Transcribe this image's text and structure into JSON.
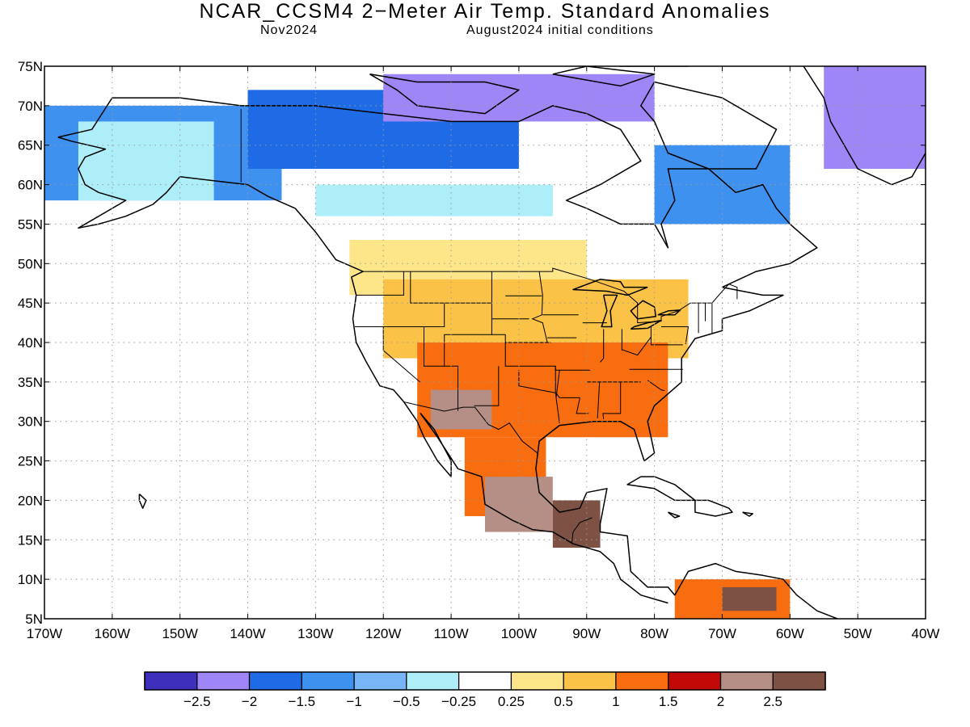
{
  "header": {
    "title": "NCAR_CCSM4 2−Meter Air Temp. Standard Anomalies",
    "valid_period": "Nov2024",
    "initial_conditions": "August2024 initial conditions"
  },
  "axes": {
    "lat_labels": [
      "75N",
      "70N",
      "65N",
      "60N",
      "55N",
      "50N",
      "45N",
      "40N",
      "35N",
      "30N",
      "25N",
      "20N",
      "15N",
      "10N",
      "5N"
    ],
    "lon_labels": [
      "170W",
      "160W",
      "150W",
      "140W",
      "130W",
      "120W",
      "110W",
      "100W",
      "90W",
      "80W",
      "70W",
      "60W",
      "50W",
      "40W"
    ]
  },
  "colorbar": {
    "colors": [
      "#3e2fbd",
      "#9f86f7",
      "#1f6be6",
      "#3e91ee",
      "#78b5f6",
      "#aeeef9",
      "#ffffff",
      "#fde68a",
      "#fbc248",
      "#f86d10",
      "#c10a07",
      "#b58f86",
      "#7e5145"
    ],
    "labels": [
      "−2.5",
      "−2",
      "−1.5",
      "−1",
      "−0.5",
      "−0.25",
      "0.25",
      "0.5",
      "1",
      "1.5",
      "2",
      "2.5"
    ]
  },
  "chart_data": {
    "type": "heatmap",
    "title": "NCAR_CCSM4 2−Meter Air Temp. Standard Anomalies",
    "xlim": [
      -170,
      -40
    ],
    "ylim": [
      5,
      75
    ],
    "grid": true,
    "levels": [
      -2.5,
      -2,
      -1.5,
      -1,
      -0.5,
      -0.25,
      0.25,
      0.5,
      1,
      1.5,
      2,
      2.5
    ],
    "regions": [
      {
        "value": -1.2,
        "lon": [
          -170,
          -135
        ],
        "lat": [
          58,
          70
        ]
      },
      {
        "value": -0.3,
        "lon": [
          -165,
          -145
        ],
        "lat": [
          58,
          68
        ]
      },
      {
        "value": -1.6,
        "lon": [
          -140,
          -100
        ],
        "lat": [
          62,
          72
        ]
      },
      {
        "value": -2.2,
        "lon": [
          -120,
          -80
        ],
        "lat": [
          68,
          74
        ]
      },
      {
        "value": -0.4,
        "lon": [
          -130,
          -95
        ],
        "lat": [
          56,
          60
        ]
      },
      {
        "value": -1.2,
        "lon": [
          -80,
          -60
        ],
        "lat": [
          55,
          65
        ]
      },
      {
        "value": -2.3,
        "lon": [
          -55,
          -40
        ],
        "lat": [
          62,
          75
        ]
      },
      {
        "value": 0.4,
        "lon": [
          -125,
          -90
        ],
        "lat": [
          46,
          53
        ]
      },
      {
        "value": 0.7,
        "lon": [
          -120,
          -75
        ],
        "lat": [
          38,
          48
        ]
      },
      {
        "value": 1.2,
        "lon": [
          -115,
          -78
        ],
        "lat": [
          28,
          40
        ]
      },
      {
        "value": 2.1,
        "lon": [
          -113,
          -104
        ],
        "lat": [
          29,
          34
        ]
      },
      {
        "value": 1.3,
        "lon": [
          -108,
          -96
        ],
        "lat": [
          18,
          28
        ]
      },
      {
        "value": 2.1,
        "lon": [
          -105,
          -95
        ],
        "lat": [
          16,
          23
        ]
      },
      {
        "value": 2.6,
        "lon": [
          -95,
          -88
        ],
        "lat": [
          14,
          20
        ]
      },
      {
        "value": 1.1,
        "lon": [
          -77,
          -60
        ],
        "lat": [
          5,
          10
        ]
      },
      {
        "value": 2.6,
        "lon": [
          -70,
          -62
        ],
        "lat": [
          6,
          9
        ]
      }
    ]
  }
}
